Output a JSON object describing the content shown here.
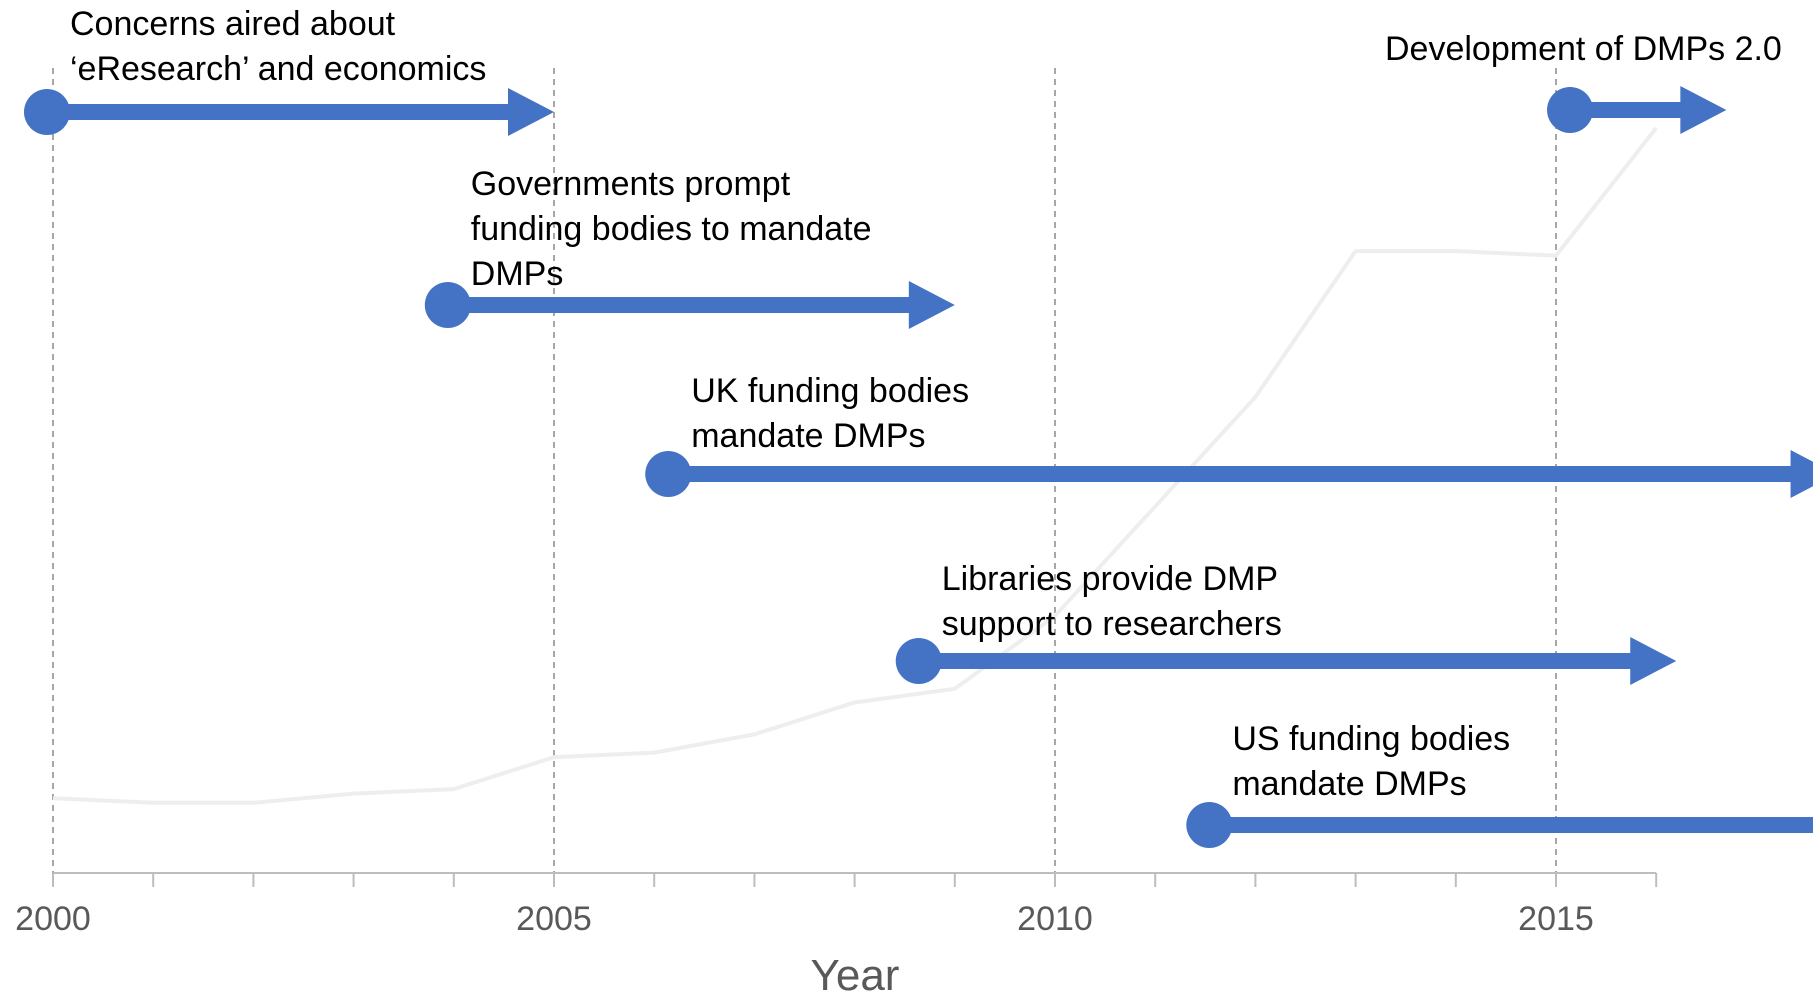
{
  "chart_data": {
    "type": "line",
    "title": "",
    "xlabel": "Year",
    "ylabel": "",
    "xlim": [
      2000,
      2016
    ],
    "x_ticks": [
      "2000",
      "2005",
      "2010",
      "2015"
    ],
    "grid": "vertical dashed lines at labeled years",
    "series": [
      {
        "x": [
          2000,
          2001,
          2002,
          2003,
          2004,
          2005,
          2006,
          2007,
          2008,
          2009,
          2010,
          2011,
          2012,
          2013,
          2014,
          2015,
          2016
        ],
        "values": [
          5,
          4,
          4,
          6,
          7,
          14,
          15,
          19,
          26,
          29,
          45,
          69,
          93,
          125,
          125,
          124,
          152
        ],
        "color": "#eeeeee"
      }
    ],
    "events": [
      {
        "label": [
          "Concerns aired about",
          "‘eResearch’ and economics"
        ],
        "start": 2000,
        "end": 2005,
        "color": "#4472c4"
      },
      {
        "label": [
          "Governments prompt",
          "funding bodies to mandate",
          "DMPs"
        ],
        "start": 2004,
        "end": 2009,
        "color": "#4472c4"
      },
      {
        "label": [
          "UK funding bodies",
          "mandate DMPs"
        ],
        "start": 2006.2,
        "end": 2017.8,
        "color": "#4472c4"
      },
      {
        "label": [
          "Libraries provide DMP",
          "support to researchers"
        ],
        "start": 2008.7,
        "end": 2016.2,
        "color": "#4472c4"
      },
      {
        "label": [
          "US funding bodies",
          "mandate DMPs"
        ],
        "start": 2011.6,
        "end": 2018.3,
        "color": "#4472c4"
      },
      {
        "label": [
          "Development of DMPs 2.0"
        ],
        "start": 2015.2,
        "end": 2016.7,
        "color": "#4472c4"
      }
    ]
  }
}
